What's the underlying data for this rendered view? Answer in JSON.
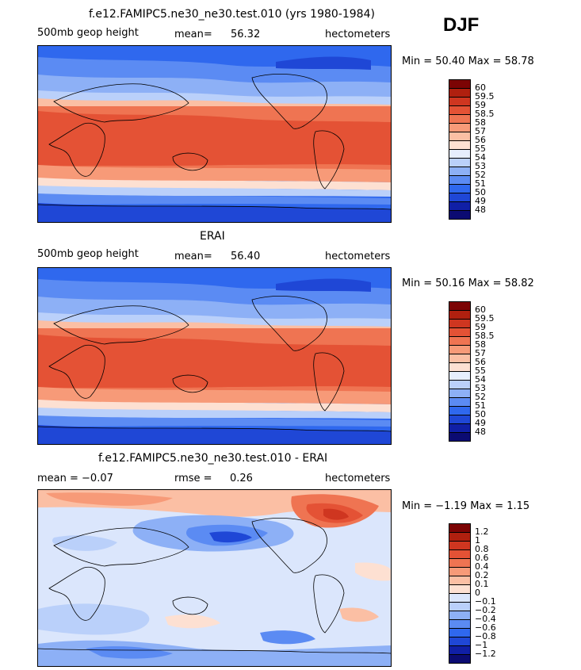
{
  "season": "DJF",
  "colors": {
    "main": [
      "#0b0b72",
      "#101fa6",
      "#1f47d6",
      "#2f68ee",
      "#5b8bf3",
      "#8db0f6",
      "#bad0fa",
      "#e6eefd",
      "#fde0d2",
      "#fbbfa4",
      "#f79a78",
      "#ef7452",
      "#e45235",
      "#cf3620",
      "#b0200f",
      "#7c0404"
    ],
    "diff": [
      "#0b0b72",
      "#101fa6",
      "#1f47d6",
      "#2f68ee",
      "#5b8bf3",
      "#8db0f6",
      "#bad0fa",
      "#dbe6fc",
      "#fde0d2",
      "#fbbfa4",
      "#f79a78",
      "#ef7452",
      "#e45235",
      "#cf3620",
      "#b0200f",
      "#7c0404"
    ]
  },
  "panels": [
    {
      "title": "f.e12.FAMIPC5.ne30_ne30.test.010 (yrs 1980-1984)",
      "left_label": "500mb geop height",
      "mid_label": "mean=",
      "mid_value": "56.32",
      "right_label": "hectometers",
      "stats": "Min =  50.40 Max =  58.78",
      "scale": "main"
    },
    {
      "title": "ERAI",
      "left_label": "500mb geop height",
      "mid_label": "mean=",
      "mid_value": "56.40",
      "right_label": "hectometers",
      "stats": "Min =  50.16 Max =  58.82",
      "scale": "main"
    },
    {
      "title": "f.e12.FAMIPC5.ne30_ne30.test.010 - ERAI",
      "left_label": "mean =   −0.07",
      "mid_label": "rmse =",
      "mid_value": "0.26",
      "right_label": "hectometers",
      "stats": "Min =  −1.19 Max =   1.15",
      "scale": "diff"
    }
  ],
  "chart_data": [
    {
      "type": "heatmap",
      "title": "f.e12.FAMIPC5.ne30_ne30.test.010 (yrs 1980-1984)",
      "variable": "500mb geop height",
      "units": "hectometers",
      "mean": 56.32,
      "min": 50.4,
      "max": 58.78,
      "levels": [
        "48",
        "49",
        "50",
        "51",
        "52",
        "53",
        "54",
        "55",
        "56",
        "57",
        "58",
        "58.5",
        "59",
        "59.5",
        "60"
      ]
    },
    {
      "type": "heatmap",
      "title": "ERAI",
      "variable": "500mb geop height",
      "units": "hectometers",
      "mean": 56.4,
      "min": 50.16,
      "max": 58.82,
      "levels": [
        "48",
        "49",
        "50",
        "51",
        "52",
        "53",
        "54",
        "55",
        "56",
        "57",
        "58",
        "58.5",
        "59",
        "59.5",
        "60"
      ]
    },
    {
      "type": "heatmap",
      "title": "f.e12.FAMIPC5.ne30_ne30.test.010 - ERAI",
      "units": "hectometers",
      "mean": -0.07,
      "rmse": 0.26,
      "min": -1.19,
      "max": 1.15,
      "levels": [
        "−1.2",
        "−1",
        "−0.8",
        "−0.6",
        "−0.4",
        "−0.2",
        "−0.1",
        "0",
        "0.1",
        "0.2",
        "0.4",
        "0.6",
        "0.8",
        "1",
        "1.2"
      ]
    }
  ]
}
